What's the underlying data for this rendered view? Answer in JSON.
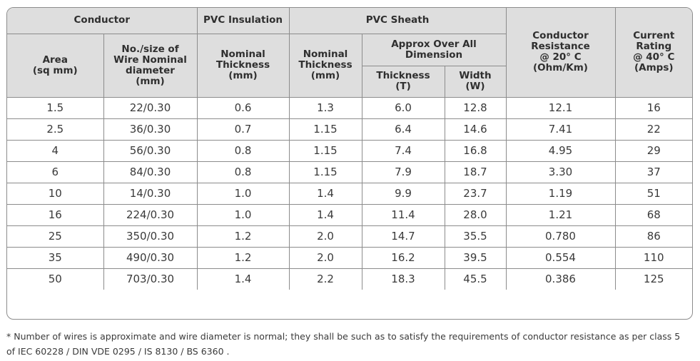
{
  "headers": {
    "conductor": "Conductor",
    "pvc_insulation": "PVC Insulation",
    "pvc_sheath": "PVC Sheath",
    "area": "Area\n(sq mm)",
    "wire_size": "No./size of\nWire Nominal\ndiameter\n(mm)",
    "ins_nominal_thickness": "Nominal\nThickness\n(mm)",
    "sheath_nominal_thickness": "Nominal\nThickness\n(mm)",
    "approx_overall": "Approx Over All\nDimension",
    "thickness_t": "Thickness\n(T)",
    "width_w": "Width\n(W)",
    "conductor_resistance": "Conductor\nResistance\n@ 20° C\n(Ohm/Km)",
    "current_rating": "Current\nRating\n@ 40° C\n(Amps)"
  },
  "rows": [
    [
      "1.5",
      "22/0.30",
      "0.6",
      "1.3",
      "6.0",
      "12.8",
      "12.1",
      "16"
    ],
    [
      "2.5",
      "36/0.30",
      "0.7",
      "1.15",
      "6.4",
      "14.6",
      "7.41",
      "22"
    ],
    [
      "4",
      "56/0.30",
      "0.8",
      "1.15",
      "7.4",
      "16.8",
      "4.95",
      "29"
    ],
    [
      "6",
      "84/0.30",
      "0.8",
      "1.15",
      "7.9",
      "18.7",
      "3.30",
      "37"
    ],
    [
      "10",
      "14/0.30",
      "1.0",
      "1.4",
      "9.9",
      "23.7",
      "1.19",
      "51"
    ],
    [
      "16",
      "224/0.30",
      "1.0",
      "1.4",
      "11.4",
      "28.0",
      "1.21",
      "68"
    ],
    [
      "25",
      "350/0.30",
      "1.2",
      "2.0",
      "14.7",
      "35.5",
      "0.780",
      "86"
    ],
    [
      "35",
      "490/0.30",
      "1.2",
      "2.0",
      "16.2",
      "39.5",
      "0.554",
      "110"
    ],
    [
      "50",
      "703/0.30",
      "1.4",
      "2.2",
      "18.3",
      "45.5",
      "0.386",
      "125"
    ]
  ],
  "footnote": "* Number of wires is approximate and wire diameter is normal; they shall be such as to satisfy the requirements of conductor resistance as per class 5 of IEC 60228 / DIN VDE 0295 / IS 8130 / BS 6360 ."
}
